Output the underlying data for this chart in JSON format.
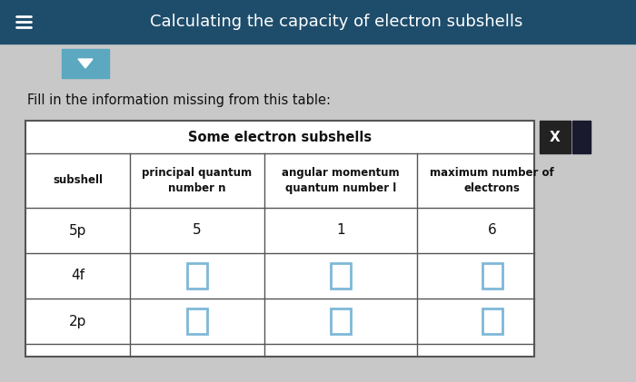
{
  "title": "Calculating the capacity of electron subshells",
  "title_bg_color": "#1E4D6B",
  "title_text_color": "#FFFFFF",
  "body_bg_color": "#C8C8C8",
  "instruction_text": "Fill in the information missing from this table:",
  "table_title": "Some electron subshells",
  "col_headers": [
    "subshell",
    "principal quantum\nnumber n",
    "angular momentum\nquantum number l",
    "maximum number of\nelectrons"
  ],
  "rows": [
    [
      "5p",
      "5",
      "1",
      "6"
    ],
    [
      "4f",
      "",
      "",
      ""
    ],
    [
      "2p",
      "",
      "",
      ""
    ]
  ],
  "input_box_color": "#7FB8D8",
  "table_bg_color": "#FFFFFF",
  "table_border_color": "#555555",
  "x_button_bg": "#222222",
  "x_button_text": "X",
  "dropdown_bg": "#5BA8C0",
  "hamburger_color": "#FFFFFF",
  "header_row_bg": "#EFEFEF"
}
